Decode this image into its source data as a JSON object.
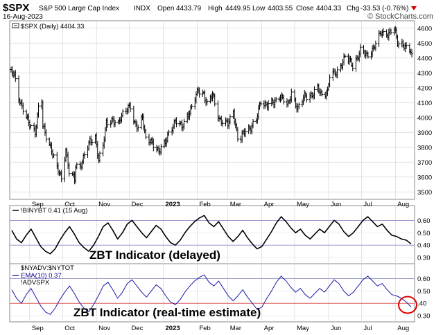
{
  "header": {
    "ticker": "$SPX",
    "name": "S&P 500 Large Cap Index",
    "exchange": "INDX",
    "date": "16-Aug-2023",
    "open_label": "Open",
    "open_value": "4433.79",
    "high_label": "High",
    "high_value": "4449.95",
    "low_label": "Low",
    "low_value": "4403.55",
    "close_label": "Close",
    "close_value": "4404.33",
    "chg_label": "Chg",
    "chg_value": "-33.53 (-0.76%)",
    "brand": "© StockCharts.com",
    "down_color": "#cc0000"
  },
  "chart_data": [
    {
      "type": "bar",
      "subtype": "ohlc",
      "legend": "$SPX (Daily) 4404.33",
      "ylim": [
        3450,
        4650
      ],
      "yticks": [
        "4600",
        "4500",
        "4400",
        "4300",
        "4200",
        "4100",
        "4000",
        "3900",
        "3800",
        "3700",
        "3600",
        "3500"
      ],
      "ytick_values": [
        4600,
        4500,
        4400,
        4300,
        4200,
        4100,
        4000,
        3900,
        3800,
        3700,
        3600,
        3500
      ],
      "x_start": "2022-08-15",
      "x_end": "2023-08-16",
      "month_labels": [
        "Sep",
        "Oct",
        "Nov",
        "Dec",
        "2023",
        "Feb",
        "Mar",
        "Apr",
        "May",
        "Jun",
        "Jul",
        "Aug"
      ],
      "month_dates": [
        "2022-09-01",
        "2022-10-01",
        "2022-11-01",
        "2022-12-01",
        "2023-01-01",
        "2023-02-01",
        "2023-03-01",
        "2023-04-01",
        "2023-05-01",
        "2023-06-01",
        "2023-07-01",
        "2023-08-01"
      ],
      "close_points": [
        [
          "2022-08-15",
          4297
        ],
        [
          "2022-08-18",
          4283
        ],
        [
          "2022-08-22",
          4138
        ],
        [
          "2022-08-26",
          4058
        ],
        [
          "2022-08-31",
          3955
        ],
        [
          "2022-09-06",
          3908
        ],
        [
          "2022-09-09",
          4067
        ],
        [
          "2022-09-12",
          4110
        ],
        [
          "2022-09-13",
          3932
        ],
        [
          "2022-09-16",
          3873
        ],
        [
          "2022-09-21",
          3789
        ],
        [
          "2022-09-26",
          3655
        ],
        [
          "2022-09-30",
          3585
        ],
        [
          "2022-10-04",
          3791
        ],
        [
          "2022-10-07",
          3639
        ],
        [
          "2022-10-12",
          3577
        ],
        [
          "2022-10-13",
          3669
        ],
        [
          "2022-10-17",
          3677
        ],
        [
          "2022-10-21",
          3752
        ],
        [
          "2022-10-26",
          3830
        ],
        [
          "2022-10-31",
          3872
        ],
        [
          "2022-11-03",
          3720
        ],
        [
          "2022-11-07",
          3806
        ],
        [
          "2022-11-10",
          3956
        ],
        [
          "2022-11-15",
          3991
        ],
        [
          "2022-11-21",
          3950
        ],
        [
          "2022-11-25",
          4026
        ],
        [
          "2022-11-30",
          4080
        ],
        [
          "2022-12-02",
          4071
        ],
        [
          "2022-12-06",
          3941
        ],
        [
          "2022-12-09",
          3934
        ],
        [
          "2022-12-13",
          4019
        ],
        [
          "2022-12-16",
          3852
        ],
        [
          "2022-12-22",
          3822
        ],
        [
          "2022-12-28",
          3783
        ],
        [
          "2023-01-03",
          3824
        ],
        [
          "2023-01-06",
          3895
        ],
        [
          "2023-01-12",
          3983
        ],
        [
          "2023-01-18",
          3928
        ],
        [
          "2023-01-23",
          4019
        ],
        [
          "2023-01-27",
          4070
        ],
        [
          "2023-02-02",
          4179
        ],
        [
          "2023-02-07",
          4164
        ],
        [
          "2023-02-10",
          4090
        ],
        [
          "2023-02-15",
          4147
        ],
        [
          "2023-02-21",
          3997
        ],
        [
          "2023-02-24",
          3970
        ],
        [
          "2023-03-01",
          3951
        ],
        [
          "2023-03-06",
          4048
        ],
        [
          "2023-03-10",
          3861
        ],
        [
          "2023-03-13",
          3855
        ],
        [
          "2023-03-17",
          3917
        ],
        [
          "2023-03-22",
          3937
        ],
        [
          "2023-03-27",
          3978
        ],
        [
          "2023-03-31",
          4109
        ],
        [
          "2023-04-05",
          4090
        ],
        [
          "2023-04-12",
          4092
        ],
        [
          "2023-04-18",
          4155
        ],
        [
          "2023-04-25",
          4071
        ],
        [
          "2023-04-28",
          4169
        ],
        [
          "2023-05-04",
          4061
        ],
        [
          "2023-05-10",
          4137
        ],
        [
          "2023-05-17",
          4158
        ],
        [
          "2023-05-22",
          4192
        ],
        [
          "2023-05-25",
          4151
        ],
        [
          "2023-05-31",
          4180
        ],
        [
          "2023-06-02",
          4282
        ],
        [
          "2023-06-08",
          4293
        ],
        [
          "2023-06-13",
          4369
        ],
        [
          "2023-06-16",
          4410
        ],
        [
          "2023-06-23",
          4348
        ],
        [
          "2023-06-30",
          4450
        ],
        [
          "2023-07-06",
          4411
        ],
        [
          "2023-07-12",
          4472
        ],
        [
          "2023-07-19",
          4565
        ],
        [
          "2023-07-25",
          4567
        ],
        [
          "2023-07-31",
          4589
        ],
        [
          "2023-08-03",
          4501
        ],
        [
          "2023-08-08",
          4499
        ],
        [
          "2023-08-11",
          4464
        ],
        [
          "2023-08-15",
          4438
        ],
        [
          "2023-08-16",
          4404
        ]
      ]
    },
    {
      "type": "line",
      "legend": "!BINYBT 0.41 (15 Aug)",
      "ylim": [
        0.25,
        0.72
      ],
      "yticks": [
        "0.60",
        "0.50",
        "0.40",
        "0.30"
      ],
      "ytick_values": [
        0.6,
        0.5,
        0.4,
        0.3
      ],
      "reference_lines": [
        0.6,
        0.4
      ],
      "annotation": "ZBT Indicator (delayed)",
      "series": [
        {
          "values": [
            0.52,
            0.45,
            0.42,
            0.48,
            0.53,
            0.46,
            0.39,
            0.35,
            0.33,
            0.37,
            0.44,
            0.5,
            0.55,
            0.49,
            0.42,
            0.38,
            0.35,
            0.4,
            0.47,
            0.55,
            0.58,
            0.52,
            0.45,
            0.5,
            0.57,
            0.6,
            0.55,
            0.5,
            0.46,
            0.51,
            0.56,
            0.53,
            0.47,
            0.42,
            0.4,
            0.44,
            0.5,
            0.55,
            0.59,
            0.62,
            0.64,
            0.58,
            0.55,
            0.59,
            0.53,
            0.47,
            0.43,
            0.47,
            0.52,
            0.46,
            0.41,
            0.37,
            0.39,
            0.45,
            0.51,
            0.58,
            0.63,
            0.59,
            0.54,
            0.5,
            0.53,
            0.48,
            0.45,
            0.49,
            0.53,
            0.5,
            0.55,
            0.6,
            0.57,
            0.51,
            0.47,
            0.5,
            0.55,
            0.6,
            0.63,
            0.59,
            0.55,
            0.57,
            0.52,
            0.48,
            0.47,
            0.45,
            0.44,
            0.41
          ]
        }
      ]
    },
    {
      "type": "line",
      "legend": "$NYADV:$NYTOT",
      "legend_lines": [
        "$NYADV:$NYTOT",
        "EMA(10) 0.37",
        "!ADVSPX"
      ],
      "ylim": [
        0.25,
        0.72
      ],
      "yticks": [
        "0.60",
        "0.50",
        ".40",
        "0.30"
      ],
      "ytick_values": [
        0.6,
        0.5,
        0.4,
        0.3
      ],
      "reference_lines": [
        0.6,
        0.4
      ],
      "reference_colors": [
        "#9999cc",
        "#e06060"
      ],
      "annotation": "ZBT Indicator (real-time estimate)",
      "highlight": "red circle around the latest reading",
      "series": [
        {
          "name": "EMA(10) 0.37",
          "values": [
            0.51,
            0.44,
            0.4,
            0.47,
            0.52,
            0.45,
            0.38,
            0.33,
            0.31,
            0.36,
            0.43,
            0.49,
            0.54,
            0.48,
            0.41,
            0.36,
            0.33,
            0.39,
            0.46,
            0.54,
            0.57,
            0.51,
            0.44,
            0.49,
            0.56,
            0.59,
            0.54,
            0.49,
            0.45,
            0.5,
            0.55,
            0.52,
            0.46,
            0.41,
            0.39,
            0.43,
            0.49,
            0.54,
            0.58,
            0.61,
            0.63,
            0.57,
            0.54,
            0.58,
            0.52,
            0.46,
            0.42,
            0.46,
            0.51,
            0.45,
            0.4,
            0.35,
            0.37,
            0.44,
            0.5,
            0.57,
            0.62,
            0.58,
            0.53,
            0.49,
            0.52,
            0.47,
            0.44,
            0.48,
            0.52,
            0.49,
            0.54,
            0.59,
            0.56,
            0.5,
            0.46,
            0.49,
            0.54,
            0.59,
            0.62,
            0.58,
            0.54,
            0.56,
            0.51,
            0.47,
            0.46,
            0.44,
            0.41,
            0.37
          ]
        }
      ]
    }
  ]
}
